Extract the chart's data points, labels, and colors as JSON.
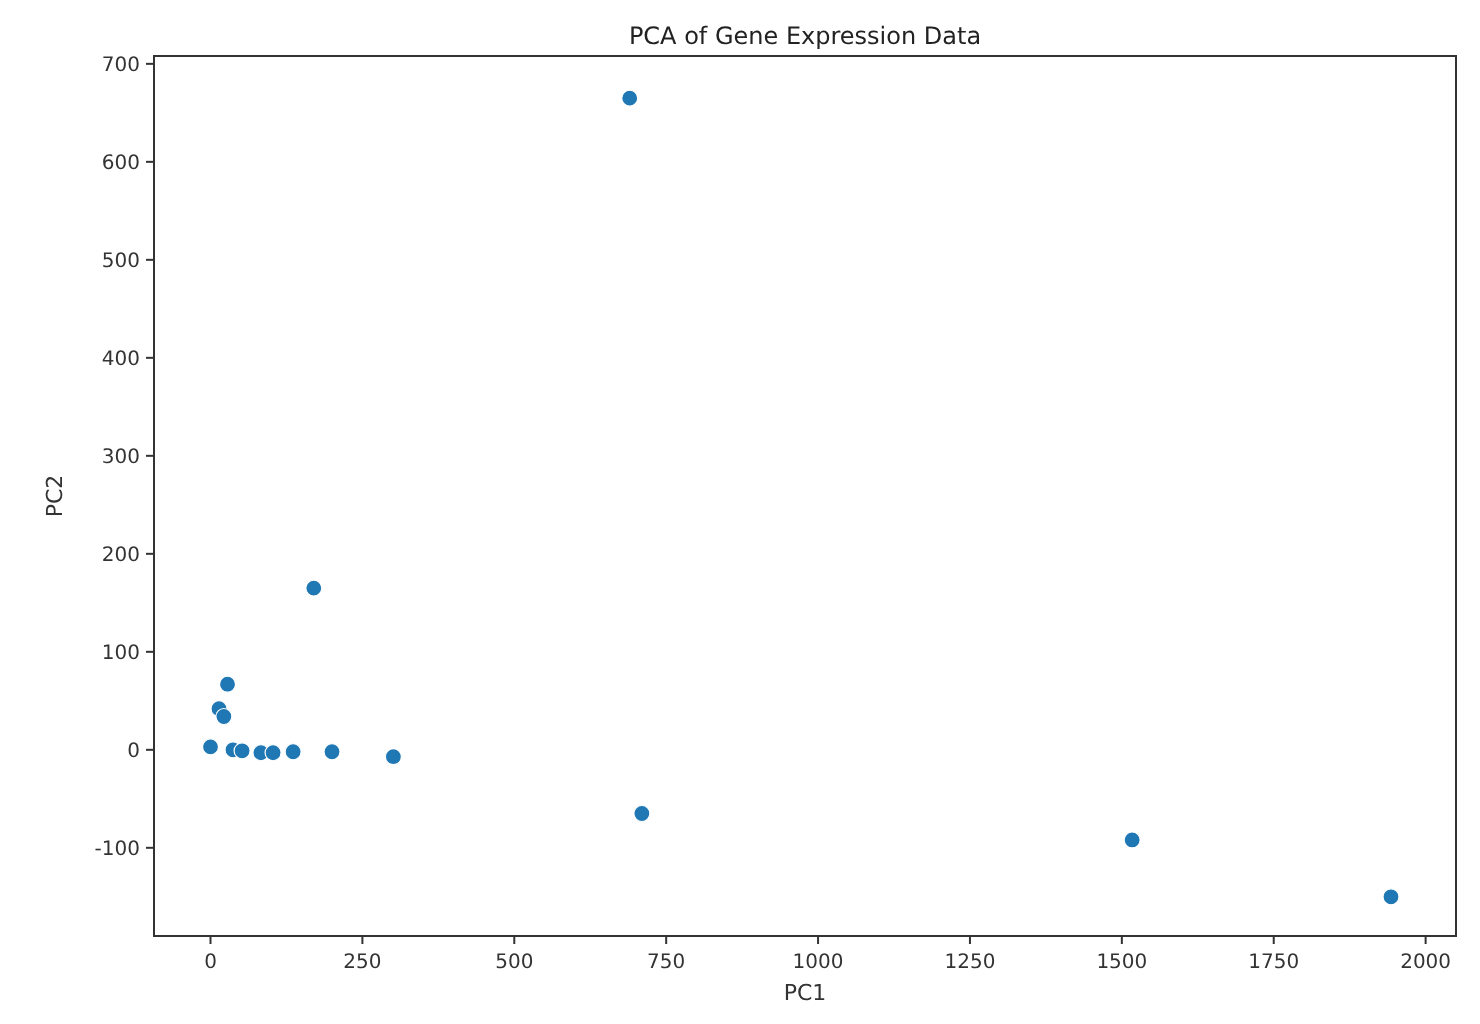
{
  "chart_data": {
    "type": "scatter",
    "title": "PCA of Gene Expression Data",
    "xlabel": "PC1",
    "ylabel": "PC2",
    "x": [
      690,
      170,
      710,
      1517,
      1943,
      28,
      14,
      22,
      0,
      37,
      52,
      83,
      103,
      136,
      200,
      301
    ],
    "series": [
      {
        "color": "#1f77b4",
        "values": [
          665,
          165,
          -65,
          -92,
          -150,
          67,
          42,
          34,
          3,
          0,
          -1,
          -3,
          -3,
          -2,
          -2,
          -7
        ]
      }
    ],
    "xlim": [
      -93,
      2050
    ],
    "ylim": [
      -190,
      708
    ],
    "xticks": [
      0,
      250,
      500,
      750,
      1000,
      1250,
      1500,
      1750,
      2000
    ],
    "yticks": [
      -100,
      0,
      100,
      200,
      300,
      400,
      500,
      600,
      700
    ],
    "marker": "circle",
    "grid": false
  }
}
